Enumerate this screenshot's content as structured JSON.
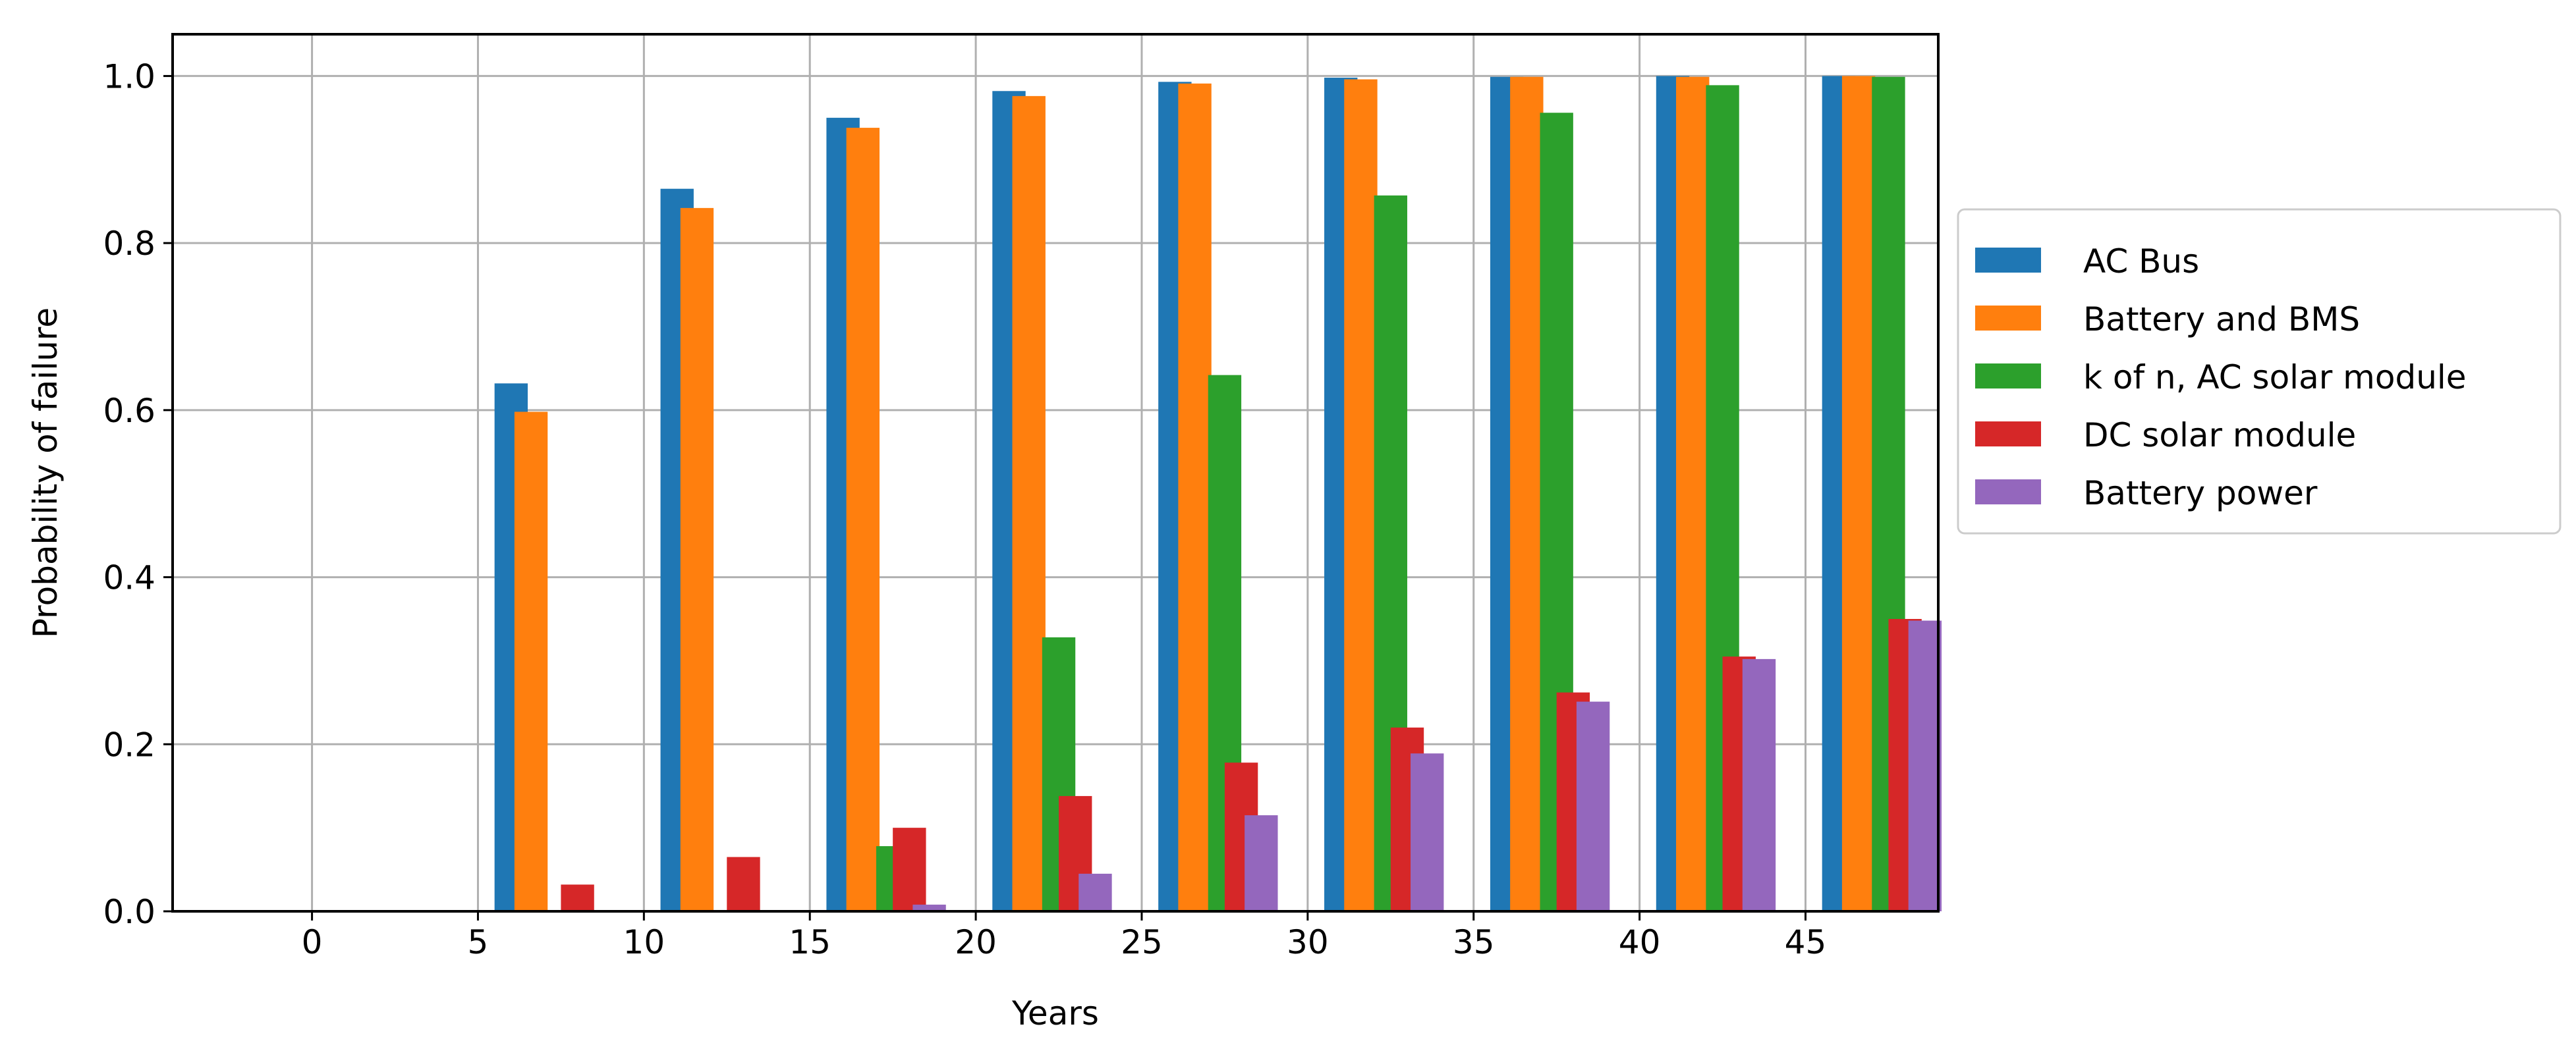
{
  "chart_data": {
    "type": "bar",
    "xlabel": "Years",
    "ylabel": "Probability of failure",
    "title": "",
    "x": [
      0,
      5,
      10,
      15,
      20,
      25,
      30,
      35,
      40,
      45
    ],
    "x_ticks": [
      "0",
      "5",
      "10",
      "15",
      "20",
      "25",
      "30",
      "35",
      "40",
      "45"
    ],
    "ylim": [
      0,
      1.05
    ],
    "xlim": [
      -4.2,
      49
    ],
    "y_ticks": [
      "0.0",
      "0.2",
      "0.4",
      "0.6",
      "0.8",
      "1.0"
    ],
    "grid": true,
    "legend_position": "outside-right",
    "series": [
      {
        "name": "AC Bus",
        "color": "#1f77b4",
        "values": [
          0.0,
          0.632,
          0.865,
          0.95,
          0.982,
          0.993,
          0.998,
          0.999,
          1.0,
          1.0
        ]
      },
      {
        "name": "Battery and BMS",
        "color": "#ff7f0e",
        "values": [
          0.0,
          0.598,
          0.842,
          0.938,
          0.976,
          0.991,
          0.996,
          0.999,
          0.999,
          1.0
        ]
      },
      {
        "name": "k of n, AC solar module",
        "color": "#2ca02c",
        "values": [
          0.0,
          0.0,
          0.0,
          0.078,
          0.328,
          0.642,
          0.857,
          0.956,
          0.989,
          0.999
        ]
      },
      {
        "name": "DC solar module",
        "color": "#d62728",
        "values": [
          0.0,
          0.032,
          0.065,
          0.1,
          0.138,
          0.178,
          0.22,
          0.262,
          0.305,
          0.35
        ]
      },
      {
        "name": "Battery power",
        "color": "#9467bd",
        "values": [
          0.0,
          0.0,
          0.0,
          0.008,
          0.045,
          0.115,
          0.189,
          0.251,
          0.302,
          0.348
        ]
      }
    ]
  }
}
